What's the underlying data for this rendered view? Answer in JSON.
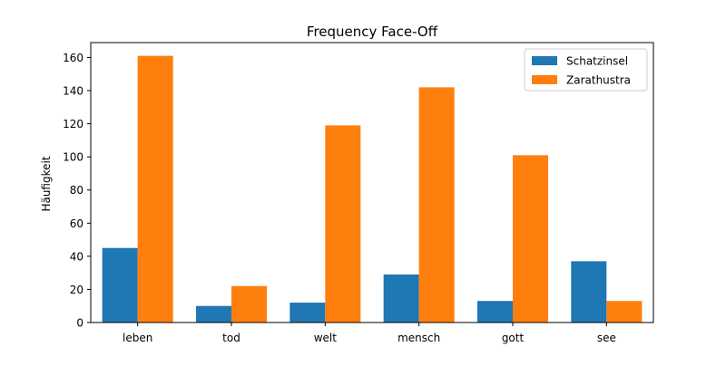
{
  "chart_data": {
    "type": "bar",
    "title": "Frequency Face-Off",
    "xlabel": "",
    "ylabel": "Häufigkeit",
    "categories": [
      "leben",
      "tod",
      "welt",
      "mensch",
      "gott",
      "see"
    ],
    "series": [
      {
        "name": "Schatzinsel",
        "color": "#1f77b4",
        "values": [
          45,
          10,
          12,
          29,
          13,
          37
        ]
      },
      {
        "name": "Zarathustra",
        "color": "#ff7f0e",
        "values": [
          161,
          22,
          119,
          142,
          101,
          13
        ]
      }
    ],
    "ylim": [
      0,
      169
    ],
    "yticks": [
      0,
      20,
      40,
      60,
      80,
      100,
      120,
      140,
      160
    ],
    "grid": false,
    "legend_position": "top-right"
  }
}
